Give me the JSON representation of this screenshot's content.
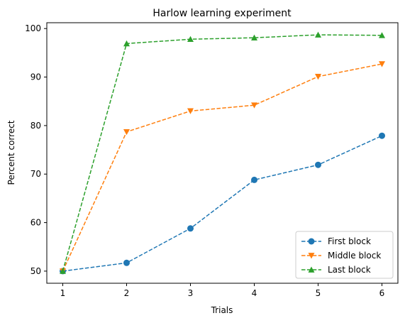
{
  "chart_data": {
    "type": "line",
    "title": "Harlow learning experiment",
    "xlabel": "Trials",
    "ylabel": "Percent correct",
    "x": [
      1,
      2,
      3,
      4,
      5,
      6
    ],
    "xlim": [
      0.75,
      6.25
    ],
    "ylim": [
      47.5,
      101.2
    ],
    "xticks": [
      1,
      2,
      3,
      4,
      5,
      6
    ],
    "yticks": [
      50,
      60,
      70,
      80,
      90,
      100
    ],
    "grid": false,
    "legend_position": "lower-right",
    "series": [
      {
        "name": "First block",
        "color": "#1f77b4",
        "marker": "circle",
        "linestyle": "dashed",
        "values": [
          50.0,
          51.7,
          58.8,
          68.8,
          71.9,
          77.9
        ]
      },
      {
        "name": "Middle block",
        "color": "#ff7f0e",
        "marker": "triangle-down",
        "linestyle": "dashed",
        "values": [
          50.0,
          78.7,
          83.0,
          84.2,
          90.1,
          92.7
        ]
      },
      {
        "name": "Last block",
        "color": "#2ca02c",
        "marker": "triangle-up",
        "linestyle": "dashed",
        "values": [
          50.0,
          96.9,
          97.8,
          98.1,
          98.7,
          98.6
        ]
      }
    ]
  }
}
